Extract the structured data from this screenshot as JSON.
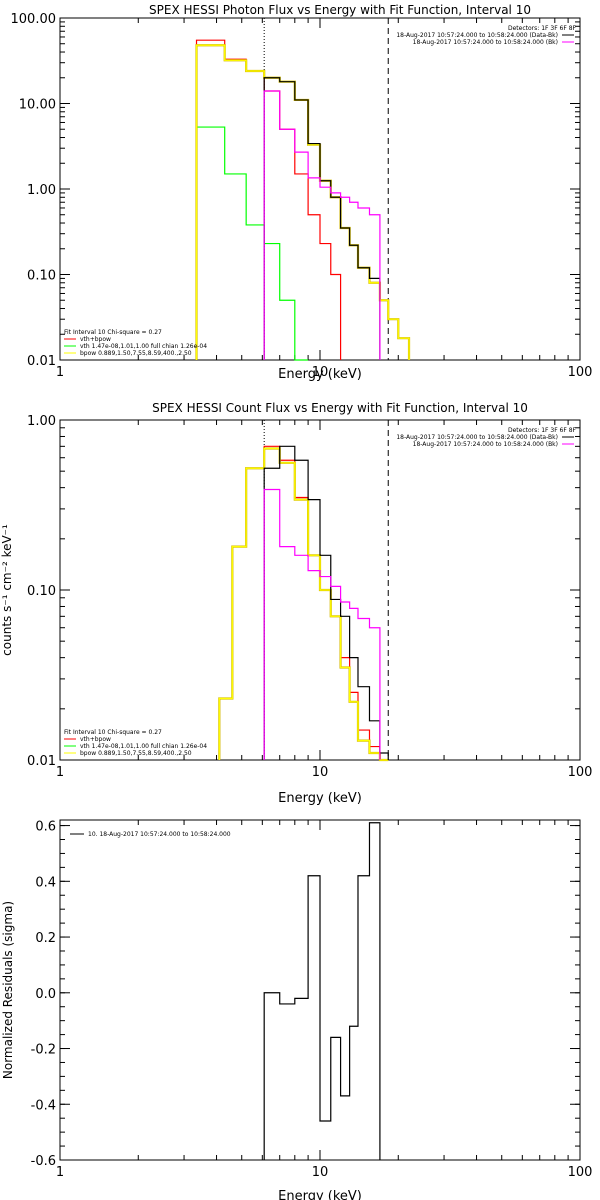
{
  "colors": {
    "data": "#000000",
    "total": "#ff0000",
    "vth_bpow": "#ff00ff",
    "vth": "#00ff00",
    "bpow": "#ffff00",
    "bpow_edge": "#d4b800",
    "marker": "#000000"
  },
  "chart_data": [
    {
      "type": "line",
      "title": "SPEX HESSI Photon Flux vs Energy with Fit Function, Interval 10",
      "xlabel": "Energy (keV)",
      "ylabel": "",
      "xscale": "log",
      "yscale": "log",
      "xlim": [
        1,
        100
      ],
      "ylim": [
        0.01,
        100
      ],
      "xticks": [
        1,
        10,
        100
      ],
      "xtick_labels": [
        "1",
        "10",
        "100"
      ],
      "yticks": [
        0.01,
        0.1,
        1,
        10,
        100
      ],
      "ytick_labels": [
        "0.01",
        "0.10",
        "1.00",
        "10.00",
        "100.00"
      ],
      "vlines": [
        {
          "x": 6.1,
          "style": "dotted"
        },
        {
          "x": 18.3,
          "style": "dashed"
        }
      ],
      "legend_top_right": [
        "Detectors: 1F 3F 6F 8F",
        "18-Aug-2017 10:57:24.000 to 10:58:24.000 (Data-Bk)",
        "18-Aug-2017 10:57:24.000 to 10:58:24.000 (Bk)"
      ],
      "legend_bottom_left": [
        "Fit Interval 10   Chi-square = 0.27",
        "vth+bpow",
        "vth 1.47e-08,1.01,1.00  full chian 1.26e-04",
        "bpow 0.889,1.50,7.55,8.59,400.,2.50"
      ],
      "edges": [
        3.35,
        4.3,
        5.2,
        6.1,
        7.0,
        8.0,
        9.0,
        10.0,
        11.0,
        12.0,
        13.0,
        14.0,
        15.5,
        17.0,
        18.3,
        20.0,
        22.0
      ],
      "series": [
        {
          "name": "vth+bpow",
          "color_key": "total",
          "x0": 3.35,
          "values": [
            55,
            33,
            24,
            14,
            5.0,
            1.5,
            0.5,
            0.23,
            0.1
          ]
        },
        {
          "name": "vth 1.47e-08,1.01,1.00  full chian 1.26e-04",
          "color_key": "vth",
          "x0": 3.35,
          "values": [
            5.3,
            1.5,
            0.38,
            0.23,
            0.05,
            0.01
          ]
        },
        {
          "name": "bpow 0.889,1.50,7.55,8.59,400.,2.50",
          "color_key": "bpow",
          "x0": 3.35,
          "values": [
            48,
            32,
            24,
            20,
            18,
            11,
            3.3,
            1.25,
            0.8,
            0.35,
            0.22,
            0.12,
            0.08,
            0.05,
            0.03,
            0.018,
            0.01
          ]
        },
        {
          "name": "18-Aug-2017 10:57:24.000 to 10:58:24.000 (Data-Bk)",
          "color_key": "data",
          "x0": 6.1,
          "values": [
            20,
            18,
            11,
            3.4,
            1.25,
            0.8,
            0.35,
            0.22,
            0.12,
            0.09
          ]
        },
        {
          "name": "18-Aug-2017 10:57:24.000 to 10:58:24.000 (Bk)",
          "color_key": "vth_bpow",
          "x0": 6.1,
          "values": [
            14,
            5.0,
            2.7,
            1.35,
            1.05,
            0.9,
            0.8,
            0.7,
            0.6,
            0.5
          ]
        }
      ]
    },
    {
      "type": "line",
      "title": "SPEX HESSI Count Flux vs Energy with Fit Function, Interval 10",
      "xlabel": "Energy (keV)",
      "ylabel": "counts s⁻¹ cm⁻² keV⁻¹",
      "xscale": "log",
      "yscale": "log",
      "xlim": [
        1,
        100
      ],
      "ylim": [
        0.01,
        1
      ],
      "xticks": [
        1,
        10,
        100
      ],
      "xtick_labels": [
        "1",
        "10",
        "100"
      ],
      "yticks": [
        0.01,
        0.1,
        1
      ],
      "ytick_labels": [
        "0.01",
        "0.10",
        "1.00"
      ],
      "vlines": [
        {
          "x": 6.1,
          "style": "dotted"
        },
        {
          "x": 18.3,
          "style": "dashed"
        }
      ],
      "legend_top_right": [
        "Detectors: 1F 3F 6F 8F",
        "18-Aug-2017 10:57:24.000 to 10:58:24.000 (Data-Bk)",
        "18-Aug-2017 10:57:24.000 to 10:58:24.000 (Bk)"
      ],
      "legend_bottom_left": [
        "Fit Interval 10   Chi-square = 0.27",
        "vth+bpow",
        "vth 1.47e-08,1.01,1.00  full chian 1.26e-04",
        "bpow 0.889,1.50,7.55,8.59,400.,2.50"
      ],
      "edges": [
        4.1,
        4.6,
        5.2,
        6.1,
        7.0,
        8.0,
        9.0,
        10.0,
        11.0,
        12.0,
        13.0,
        14.0,
        15.5,
        17.0,
        18.3
      ],
      "series": [
        {
          "name": "vth+bpow",
          "color_key": "total",
          "x0": 4.1,
          "values": [
            0.023,
            0.18,
            0.52,
            0.7,
            0.58,
            0.35,
            0.16,
            0.1,
            0.07,
            0.04,
            0.025,
            0.015,
            0.012,
            0.01
          ]
        },
        {
          "name": "bpow 0.889,1.50,7.55,8.59,400.,2.50",
          "color_key": "bpow",
          "x0": 4.1,
          "values": [
            0.023,
            0.18,
            0.52,
            0.68,
            0.56,
            0.34,
            0.16,
            0.1,
            0.07,
            0.035,
            0.022,
            0.013,
            0.011,
            0.01
          ]
        },
        {
          "name": "18-Aug-2017 10:57:24.000 to 10:58:24.000 (Data-Bk)",
          "color_key": "data",
          "x0": 6.1,
          "values": [
            0.52,
            0.7,
            0.58,
            0.34,
            0.16,
            0.088,
            0.07,
            0.04,
            0.027,
            0.017,
            0.011
          ]
        },
        {
          "name": "18-Aug-2017 10:57:24.000 to 10:58:24.000 (Bk)",
          "color_key": "vth_bpow",
          "x0": 6.1,
          "values": [
            0.39,
            0.18,
            0.16,
            0.13,
            0.12,
            0.105,
            0.085,
            0.078,
            0.068,
            0.06
          ]
        }
      ]
    },
    {
      "type": "line",
      "title": "",
      "xlabel": "Energy (keV)",
      "ylabel": "Normalized Residuals (sigma)",
      "xscale": "log",
      "yscale": "linear",
      "xlim": [
        1,
        100
      ],
      "ylim": [
        -0.6,
        0.62
      ],
      "xticks": [
        1,
        10,
        100
      ],
      "xtick_labels": [
        "1",
        "10",
        "100"
      ],
      "yticks": [
        -0.6,
        -0.4,
        -0.2,
        0.0,
        0.2,
        0.4,
        0.6
      ],
      "ytick_labels": [
        "-0.6",
        "-0.4",
        "-0.2",
        "0.0",
        "0.2",
        "0.4",
        "0.6"
      ],
      "vlines": [],
      "legend_top_left": [
        "10. 18-Aug-2017 10:57:24.000 to 10:58:24.000"
      ],
      "edges": [
        6.1,
        7.0,
        8.0,
        9.0,
        10.0,
        11.0,
        12.0,
        13.0,
        14.0,
        15.5,
        17.0,
        18.3
      ],
      "series": [
        {
          "name": "10. 18-Aug-2017 10:57:24.000 to 10:58:24.000",
          "color_key": "data",
          "x0": 6.1,
          "values": [
            0.0,
            -0.04,
            -0.02,
            0.42,
            -0.46,
            -0.16,
            -0.37,
            -0.12,
            0.42,
            0.61
          ]
        }
      ]
    }
  ]
}
